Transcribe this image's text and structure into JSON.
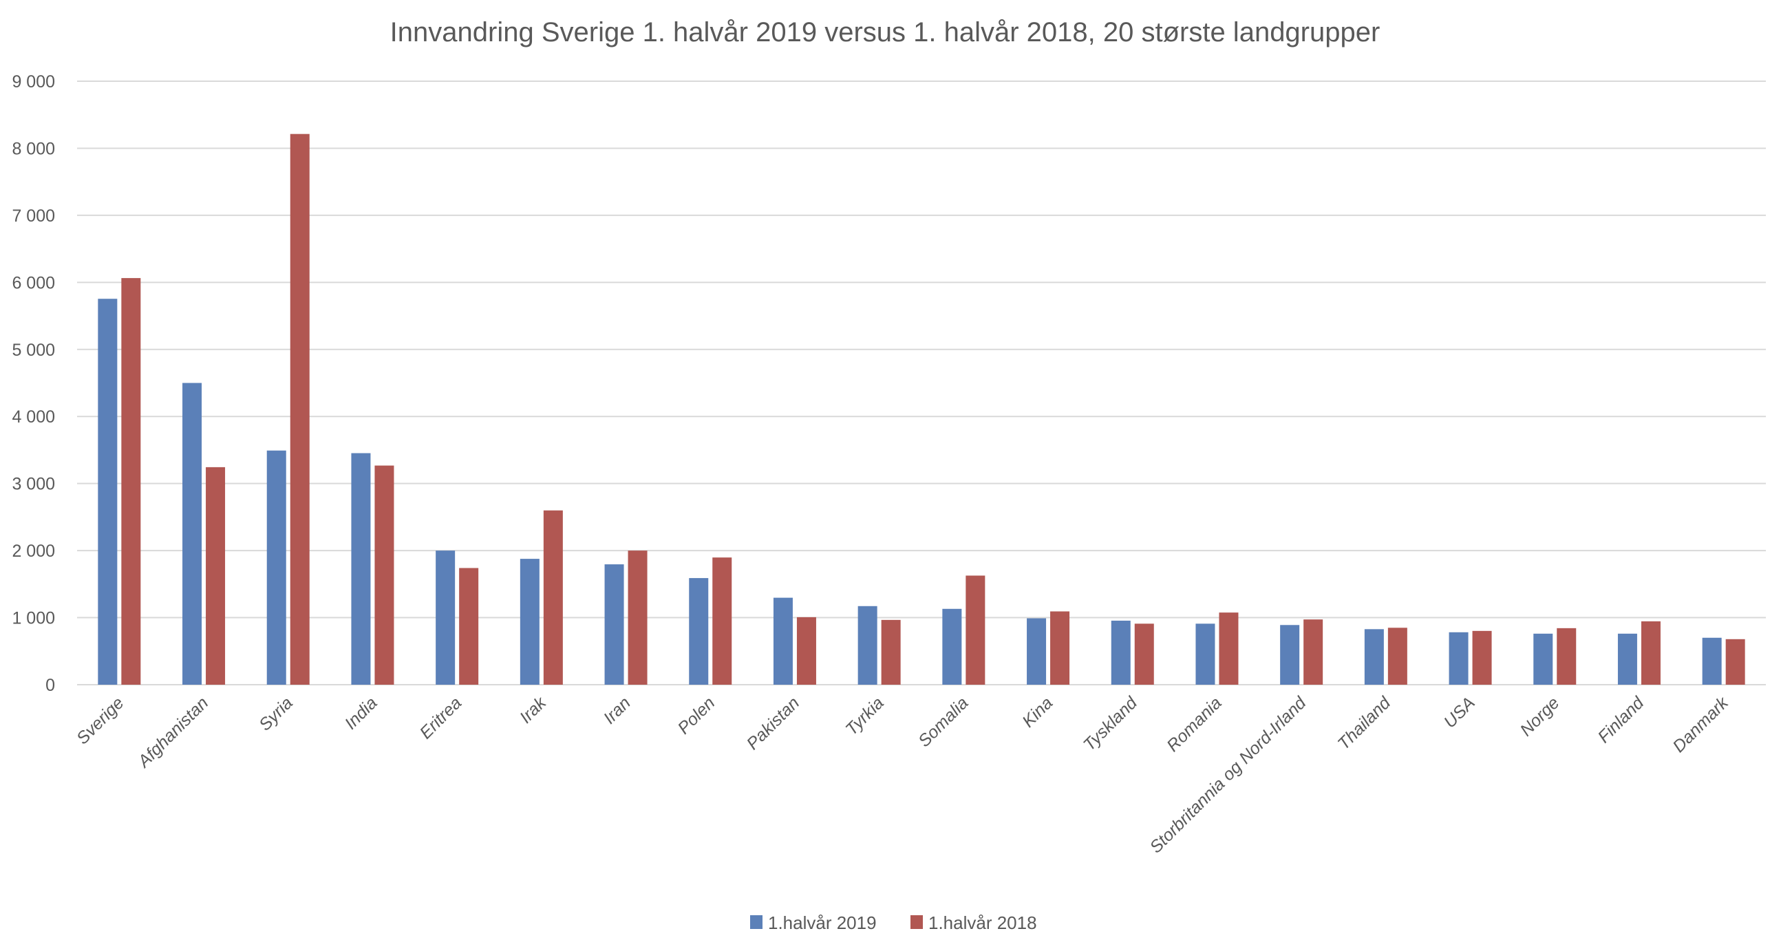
{
  "chart_data": {
    "type": "bar",
    "title": "Innvandring Sverige 1. halvår 2019 versus 1. halvår 2018, 20 største landgrupper",
    "xlabel": "",
    "ylabel": "",
    "ylim": [
      0,
      9000
    ],
    "yticks": [
      0,
      1000,
      2000,
      3000,
      4000,
      5000,
      6000,
      7000,
      8000,
      9000
    ],
    "ytick_labels": [
      "0",
      "1 000",
      "2 000",
      "3 000",
      "4 000",
      "5 000",
      "6 000",
      "7 000",
      "8 000",
      "9 000"
    ],
    "grid": true,
    "legend_position": "bottom",
    "categories": [
      "Sverige",
      "Afghanistan",
      "Syria",
      "India",
      "Eritrea",
      "Irak",
      "Iran",
      "Polen",
      "Pakistan",
      "Tyrkia",
      "Somalia",
      "Kina",
      "Tyskland",
      "Romania",
      "Storbritannia og Nord-Irland",
      "Thailand",
      "USA",
      "Norge",
      "Finland",
      "Danmark"
    ],
    "series": [
      {
        "name": "1.halvår 2019",
        "color": "#5b80b8",
        "values": [
          5755,
          4500,
          3492,
          3453,
          2000,
          1877,
          1795,
          1590,
          1297,
          1172,
          1131,
          990,
          955,
          910,
          890,
          828,
          782,
          761,
          761,
          700
        ]
      },
      {
        "name": "1.halvår 2018",
        "color": "#b15752",
        "values": [
          6064,
          3244,
          8213,
          3268,
          1740,
          2599,
          2000,
          1897,
          1007,
          966,
          1627,
          1093,
          910,
          1076,
          973,
          849,
          802,
          843,
          945,
          679
        ]
      }
    ]
  }
}
